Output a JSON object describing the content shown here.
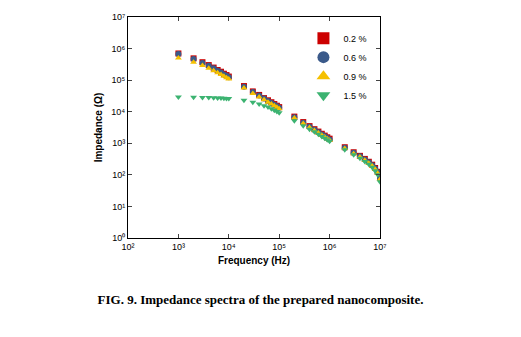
{
  "chart_data": {
    "type": "scatter",
    "title": "FIG. 9. Impedance spectra of the prepared nanocomposite.",
    "x_label": "Frequency (Hz)",
    "y_label": "Impedance (Ω)",
    "log": true,
    "grid": false,
    "legend": "top right",
    "xlim": [
      100,
      10000000
    ],
    "xticks": [
      {
        "value": 100,
        "label": "10²"
      },
      {
        "value": 1000,
        "label": "10³"
      },
      {
        "value": 10000,
        "label": "10⁴"
      },
      {
        "value": 100000,
        "label": "10⁵"
      },
      {
        "value": 1000000,
        "label": "10⁶"
      },
      {
        "value": 10000000,
        "label": "10⁷"
      }
    ],
    "ylim": [
      1,
      10000000
    ],
    "yticks": [
      {
        "value": 1,
        "label": "10⁰"
      },
      {
        "value": 10,
        "label": "10¹"
      },
      {
        "value": 100,
        "label": "10²"
      },
      {
        "value": 1000,
        "label": "10³"
      },
      {
        "value": 10000,
        "label": "10⁴"
      },
      {
        "value": 100000,
        "label": "10⁵"
      },
      {
        "value": 1000000,
        "label": "10⁶"
      },
      {
        "value": 10000000,
        "label": "10⁷"
      }
    ],
    "x": [
      1000,
      2000,
      3000,
      4000,
      5000,
      6000,
      7000,
      8000,
      9000,
      10000,
      20000,
      30000,
      40000,
      50000,
      60000,
      70000,
      80000,
      90000,
      100000,
      200000,
      300000,
      400000,
      500000,
      600000,
      700000,
      800000,
      900000,
      1000000,
      2000000,
      3000000,
      4000000,
      5000000,
      6000000,
      7000000,
      8000000,
      9000000,
      10000000
    ],
    "series": [
      {
        "name": "0.2 %",
        "color": "#cc0000",
        "marker": "square",
        "values": [
          700000,
          490000,
          370000,
          300000,
          250000,
          210000,
          185000,
          160000,
          145000,
          130000,
          65000,
          44000,
          34000,
          27000,
          23000,
          20000,
          17500,
          15500,
          14000,
          7000,
          4700,
          3500,
          2800,
          2350,
          2000,
          1750,
          1550,
          1400,
          750,
          520,
          400,
          320,
          260,
          210,
          165,
          125,
          85
        ]
      },
      {
        "name": "0.6 %",
        "color": "#3b5a8a",
        "marker": "circle",
        "values": [
          670000,
          470000,
          350000,
          285000,
          240000,
          200000,
          175000,
          152000,
          138000,
          124000,
          62000,
          42000,
          32500,
          26000,
          22000,
          19000,
          16700,
          14800,
          13300,
          6700,
          4500,
          3350,
          2700,
          2250,
          1900,
          1670,
          1480,
          1330,
          720,
          500,
          385,
          305,
          250,
          200,
          158,
          120,
          80
        ]
      },
      {
        "name": "0.9 %",
        "color": "#f5c000",
        "marker": "triangle-up",
        "values": [
          500000,
          370000,
          290000,
          240000,
          200000,
          170000,
          150000,
          132000,
          120000,
          108000,
          56000,
          38000,
          29500,
          24000,
          20000,
          17500,
          15500,
          13800,
          12500,
          6300,
          4200,
          3150,
          2550,
          2100,
          1800,
          1580,
          1400,
          1250,
          680,
          470,
          365,
          290,
          235,
          190,
          150,
          112,
          72
        ]
      },
      {
        "name": "1.5 %",
        "color": "#3cb371",
        "marker": "triangle-down",
        "values": [
          29000,
          28500,
          28000,
          28000,
          27500,
          27000,
          27000,
          26500,
          26000,
          26000,
          23000,
          20000,
          17500,
          15500,
          14000,
          12500,
          11200,
          10200,
          9300,
          5200,
          3600,
          2800,
          2300,
          1950,
          1650,
          1450,
          1300,
          1150,
          620,
          430,
          335,
          265,
          215,
          175,
          135,
          100,
          60
        ]
      }
    ]
  }
}
